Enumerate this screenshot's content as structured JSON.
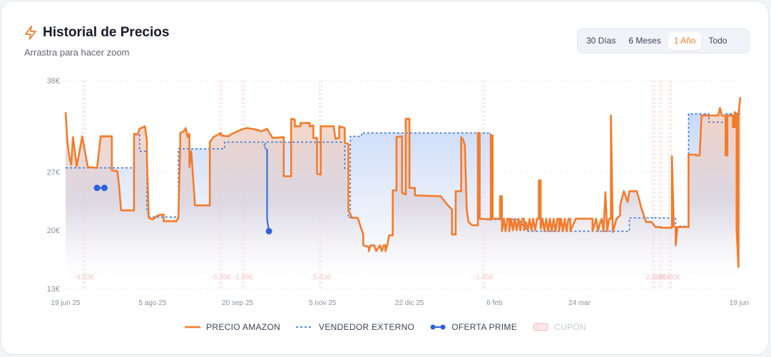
{
  "header": {
    "title": "Historial de Precios",
    "subtitle": "Arrastra para hacer zoom",
    "ranges": [
      "30 Días",
      "6 Meses",
      "1 Año",
      "Todo"
    ],
    "active_range": "1 Año"
  },
  "legend": {
    "amazon": "PRECIO AMAZON",
    "external": "VENDEDOR EXTERNO",
    "prime": "OFERTA PRIME",
    "coupon": "CUPÓN"
  },
  "colors": {
    "amazon": "#f47b2a",
    "external": "#3a78d8",
    "prime": "#2f62d9",
    "coupon": "#f4a6a6",
    "title_icon": "#f47b2a"
  },
  "chart_data": {
    "type": "line",
    "ylim": [
      13,
      38
    ],
    "yticks": [
      {
        "v": 38,
        "label": "38€"
      },
      {
        "v": 27,
        "label": "27€"
      },
      {
        "v": 20,
        "label": "20€"
      },
      {
        "v": 13,
        "label": "13€"
      }
    ],
    "xlim": [
      0,
      365
    ],
    "xticks": [
      {
        "d": 0,
        "label": "19 jun 25"
      },
      {
        "d": 47,
        "label": "5 ago 25"
      },
      {
        "d": 93,
        "label": "20 sep 25"
      },
      {
        "d": 139,
        "label": "5 nov 25"
      },
      {
        "d": 186,
        "label": "22 dic 25"
      },
      {
        "d": 232,
        "label": "6 feb"
      },
      {
        "d": 278,
        "label": "24 mar"
      },
      {
        "d": 365,
        "label": "19 jun"
      }
    ],
    "series": [
      {
        "name": "PRECIO AMAZON",
        "style": "solid",
        "points": [
          [
            0,
            34.2
          ],
          [
            1,
            30.6
          ],
          [
            2,
            28.8
          ],
          [
            3,
            27.9
          ],
          [
            4,
            31.2
          ],
          [
            6,
            27.7
          ],
          [
            9,
            31.3
          ],
          [
            12,
            27.6
          ],
          [
            17,
            27.5
          ],
          [
            19,
            31.3
          ],
          [
            25,
            31.3
          ],
          [
            25,
            27.2
          ],
          [
            28,
            27.1
          ],
          [
            29,
            25.1
          ],
          [
            30,
            22.4
          ],
          [
            37,
            22.4
          ],
          [
            37,
            31.6
          ],
          [
            39,
            31.5
          ],
          [
            40,
            32.2
          ],
          [
            43,
            32.5
          ],
          [
            44,
            30.7
          ],
          [
            44,
            28.6
          ],
          [
            45,
            21.5
          ],
          [
            47,
            21.3
          ],
          [
            50,
            21.8
          ],
          [
            53,
            21.9
          ],
          [
            53,
            21.1
          ],
          [
            60,
            21.1
          ],
          [
            61,
            21.5
          ],
          [
            62,
            30.2
          ],
          [
            62,
            31.7
          ],
          [
            64,
            31.9
          ],
          [
            65,
            32.3
          ],
          [
            66,
            31.2
          ],
          [
            67,
            31.6
          ],
          [
            67,
            27.6
          ],
          [
            68,
            29.5
          ],
          [
            70,
            23.0
          ],
          [
            78,
            23.0
          ],
          [
            78,
            30.6
          ],
          [
            80,
            31.2
          ],
          [
            84,
            31.7
          ],
          [
            84,
            31.4
          ],
          [
            88,
            31.3
          ],
          [
            90,
            31.6
          ],
          [
            95,
            32.1
          ],
          [
            98,
            32.3
          ],
          [
            103,
            32.1
          ],
          [
            106,
            31.9
          ],
          [
            109,
            32.2
          ],
          [
            110,
            31.8
          ],
          [
            112,
            31.1
          ],
          [
            118,
            31.2
          ],
          [
            118,
            26.5
          ],
          [
            122,
            26.5
          ],
          [
            122,
            33.4
          ],
          [
            124,
            33.3
          ],
          [
            124,
            32.5
          ],
          [
            127,
            32.5
          ],
          [
            127,
            32.9
          ],
          [
            132,
            32.9
          ],
          [
            132,
            32.5
          ],
          [
            134,
            32.6
          ],
          [
            134,
            31.1
          ],
          [
            136,
            31.1
          ],
          [
            136,
            26.8
          ],
          [
            138,
            26.7
          ],
          [
            138,
            32.5
          ],
          [
            145,
            32.5
          ],
          [
            146,
            31.0
          ],
          [
            148,
            31.1
          ],
          [
            148,
            32.5
          ],
          [
            151,
            32.3
          ],
          [
            151,
            30.5
          ],
          [
            153,
            30.4
          ],
          [
            153,
            22.4
          ],
          [
            155,
            21.5
          ],
          [
            158,
            21.5
          ],
          [
            161,
            19.5
          ],
          [
            161,
            18.2
          ],
          [
            164,
            18.0
          ],
          [
            164,
            17.5
          ],
          [
            165,
            18.2
          ],
          [
            167,
            18.2
          ],
          [
            168,
            17.5
          ],
          [
            170,
            18.2
          ],
          [
            171,
            17.5
          ],
          [
            172,
            18.2
          ],
          [
            173,
            18.2
          ],
          [
            173,
            17.5
          ],
          [
            174,
            18.2
          ],
          [
            175,
            19.4
          ],
          [
            177,
            19.4
          ],
          [
            177,
            24.8
          ],
          [
            179,
            24.8
          ],
          [
            179,
            31.2
          ],
          [
            182,
            31.3
          ],
          [
            182,
            24.5
          ],
          [
            184,
            24.3
          ],
          [
            184,
            33.4
          ],
          [
            186,
            33.4
          ],
          [
            186,
            25.1
          ],
          [
            189,
            25.1
          ],
          [
            189,
            24.2
          ],
          [
            203,
            24.1
          ],
          [
            206,
            23.2
          ],
          [
            209,
            22.5
          ],
          [
            209,
            19.5
          ],
          [
            211,
            19.5
          ],
          [
            211,
            24.7
          ],
          [
            214,
            24.7
          ],
          [
            214,
            31.2
          ],
          [
            215,
            30.9
          ],
          [
            216,
            30.2
          ],
          [
            217,
            22.5
          ],
          [
            218,
            21.0
          ],
          [
            220,
            20.6
          ],
          [
            223,
            20.6
          ],
          [
            223,
            31.7
          ],
          [
            224,
            31.7
          ],
          [
            224,
            21.4
          ],
          [
            230,
            21.3
          ],
          [
            230,
            31.4
          ],
          [
            231,
            31.4
          ],
          [
            231,
            21.4
          ],
          [
            235,
            21.4
          ],
          [
            235,
            24.1
          ],
          [
            236,
            24.1
          ],
          [
            236,
            19.9
          ],
          [
            237,
            21.4
          ],
          [
            238,
            19.9
          ],
          [
            239,
            21.4
          ],
          [
            240,
            21.4
          ],
          [
            240,
            19.9
          ],
          [
            241,
            21.4
          ],
          [
            242,
            20.0
          ],
          [
            243,
            21.4
          ],
          [
            244,
            20.0
          ],
          [
            245,
            21.4
          ],
          [
            246,
            20.0
          ],
          [
            247,
            21.4
          ],
          [
            248,
            21.4
          ],
          [
            248,
            20.0
          ],
          [
            249,
            21.0
          ],
          [
            250,
            20.0
          ],
          [
            251,
            21.4
          ],
          [
            252,
            20.0
          ],
          [
            253,
            21.4
          ],
          [
            254,
            20.0
          ],
          [
            255,
            21.4
          ],
          [
            256,
            21.4
          ],
          [
            256,
            26.0
          ],
          [
            257,
            26.0
          ],
          [
            257,
            20.2
          ],
          [
            258,
            21.4
          ],
          [
            259,
            19.9
          ],
          [
            260,
            21.4
          ],
          [
            261,
            19.9
          ],
          [
            262,
            21.4
          ],
          [
            263,
            19.9
          ],
          [
            264,
            21.4
          ],
          [
            265,
            19.9
          ],
          [
            266,
            21.4
          ],
          [
            267,
            21.4
          ],
          [
            267,
            19.9
          ],
          [
            268,
            21.4
          ],
          [
            269,
            19.9
          ],
          [
            270,
            21.4
          ],
          [
            271,
            19.9
          ],
          [
            272,
            21.4
          ],
          [
            273,
            21.4
          ],
          [
            273,
            19.9
          ],
          [
            276,
            21.4
          ],
          [
            285,
            21.4
          ],
          [
            285,
            19.9
          ],
          [
            287,
            21.4
          ],
          [
            288,
            19.9
          ],
          [
            289,
            20.8
          ],
          [
            290,
            21.4
          ],
          [
            291,
            19.9
          ],
          [
            292,
            24.6
          ],
          [
            293,
            19.9
          ],
          [
            294,
            21.4
          ],
          [
            295,
            21.4
          ],
          [
            295,
            33.8
          ],
          [
            296,
            19.8
          ],
          [
            298,
            21.4
          ],
          [
            300,
            21.8
          ],
          [
            300,
            23.0
          ],
          [
            302,
            24.7
          ],
          [
            304,
            23.4
          ],
          [
            305,
            24.7
          ],
          [
            309,
            24.7
          ],
          [
            311,
            23.1
          ],
          [
            311,
            23.0
          ],
          [
            314,
            21.0
          ],
          [
            317,
            21.0
          ],
          [
            318,
            20.7
          ],
          [
            319,
            20.4
          ],
          [
            322,
            20.4
          ],
          [
            322,
            20.3
          ],
          [
            328,
            20.3
          ],
          [
            328,
            28.9
          ],
          [
            329,
            20.5
          ],
          [
            330,
            20.4
          ],
          [
            330,
            18.2
          ],
          [
            331,
            20.4
          ],
          [
            331,
            20.4
          ],
          [
            336,
            20.4
          ],
          [
            337,
            20.4
          ],
          [
            337,
            29.1
          ],
          [
            341,
            29.1
          ],
          [
            341,
            29.0
          ],
          [
            343,
            29.0
          ],
          [
            344,
            33.8
          ],
          [
            348,
            33.8
          ],
          [
            351,
            33.8
          ],
          [
            353,
            33.8
          ],
          [
            354,
            34.7
          ],
          [
            355,
            33.8
          ],
          [
            357,
            33.8
          ],
          [
            357,
            29.0
          ],
          [
            358,
            29.0
          ],
          [
            358,
            33.8
          ],
          [
            359,
            33.8
          ],
          [
            361,
            33.8
          ],
          [
            361,
            32.4
          ],
          [
            362,
            32.4
          ],
          [
            362,
            34.2
          ],
          [
            363,
            34.0
          ],
          [
            363,
            20.1
          ],
          [
            364,
            15.6
          ],
          [
            364,
            34.0
          ],
          [
            365,
            36.0
          ]
        ]
      },
      {
        "name": "VENDEDOR EXTERNO",
        "style": "dashed",
        "points": [
          [
            0,
            27.5
          ],
          [
            37,
            27.5
          ],
          [
            37,
            31.5
          ],
          [
            40,
            31.5
          ],
          [
            40,
            29.5
          ],
          [
            44,
            29.5
          ],
          [
            44,
            22.5
          ],
          [
            45,
            21.6
          ],
          [
            61,
            21.6
          ],
          [
            61,
            29.8
          ],
          [
            86,
            29.8
          ],
          [
            86,
            30.6
          ],
          [
            107,
            30.6
          ],
          [
            108,
            29.8
          ],
          [
            108,
            30.6
          ],
          [
            151,
            30.6
          ],
          [
            151,
            27.4
          ],
          [
            153,
            27.4
          ],
          [
            153,
            21.5
          ],
          [
            154,
            21.5
          ],
          [
            154,
            31.3
          ],
          [
            160,
            31.3
          ],
          [
            160,
            31.7
          ],
          [
            176,
            31.7
          ],
          [
            177,
            31.7
          ],
          [
            230,
            31.7
          ],
          [
            230,
            21.3
          ],
          [
            245,
            21.3
          ],
          [
            250,
            19.9
          ],
          [
            305,
            19.9
          ],
          [
            305,
            21.5
          ],
          [
            318,
            21.5
          ],
          [
            318,
            21.6
          ],
          [
            319,
            21.5
          ],
          [
            330,
            21.5
          ],
          [
            330,
            20.4
          ],
          [
            331,
            20.4
          ],
          [
            332,
            20.5
          ],
          [
            337,
            20.5
          ],
          [
            337,
            34.0
          ],
          [
            348,
            34.0
          ],
          [
            348,
            33.0
          ],
          [
            357,
            33.0
          ],
          [
            357,
            34.0
          ],
          [
            365,
            34.0
          ]
        ]
      }
    ],
    "prime": [
      {
        "points": [
          [
            17,
            25.1
          ],
          [
            21,
            25.1
          ]
        ]
      },
      {
        "points": [
          [
            109,
            29.8
          ],
          [
            109,
            21.3
          ],
          [
            110,
            19.9
          ]
        ]
      }
    ],
    "coupons": [
      {
        "d": 10,
        "label": "-4.53€"
      },
      {
        "d": 84,
        "label": "-0.39€"
      },
      {
        "d": 96,
        "label": "-1.89€"
      },
      {
        "d": 138,
        "label": "-5.43€"
      },
      {
        "d": 226,
        "label": "-1.45€"
      },
      {
        "d": 318,
        "label": "-2.18€"
      },
      {
        "d": 322,
        "label": "-1.00€"
      },
      {
        "d": 327,
        "label": "-1.00€"
      }
    ]
  }
}
